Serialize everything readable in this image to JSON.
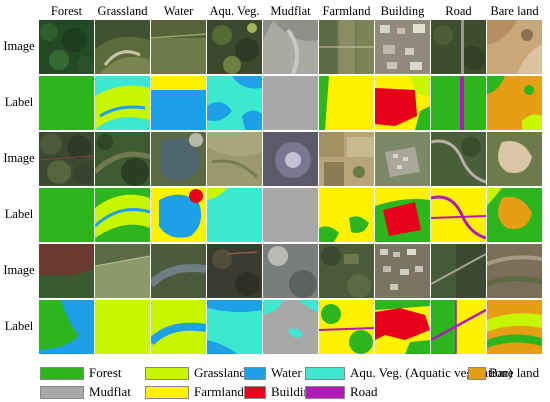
{
  "columns": [
    {
      "label": "Forest"
    },
    {
      "label": "Grassland"
    },
    {
      "label": "Water"
    },
    {
      "label": "Aqu. Veg."
    },
    {
      "label": "Mudflat"
    },
    {
      "label": "Farmland"
    },
    {
      "label": "Building"
    },
    {
      "label": "Road"
    },
    {
      "label": "Bare land"
    }
  ],
  "row_labels": [
    "Image",
    "Label",
    "Image",
    "Label",
    "Image",
    "Label"
  ],
  "legend": [
    {
      "label": "Forest",
      "color": "#2db51e"
    },
    {
      "label": "Grassland",
      "color": "#c8f500"
    },
    {
      "label": "Water",
      "color": "#1ea0e6"
    },
    {
      "label": "Aqu. Veg. (Aquatic vegetation)",
      "color": "#3de8d0"
    },
    {
      "label": "Bare land",
      "color": "#e69e14"
    },
    {
      "label": "Mudflat",
      "color": "#a8a8a8"
    },
    {
      "label": "Farmland",
      "color": "#fff200"
    },
    {
      "label": "Building",
      "color": "#e8001a"
    },
    {
      "label": "Road",
      "color": "#b01ab5"
    }
  ],
  "colors": {
    "forest": "#2db51e",
    "grassland": "#c8f500",
    "water": "#1ea0e6",
    "aquatic_vegetation": "#3de8d0",
    "mudflat": "#a8a8a8",
    "farmland": "#fff200",
    "building": "#e8001a",
    "road": "#b01ab5",
    "bare_land": "#e69e14"
  }
}
